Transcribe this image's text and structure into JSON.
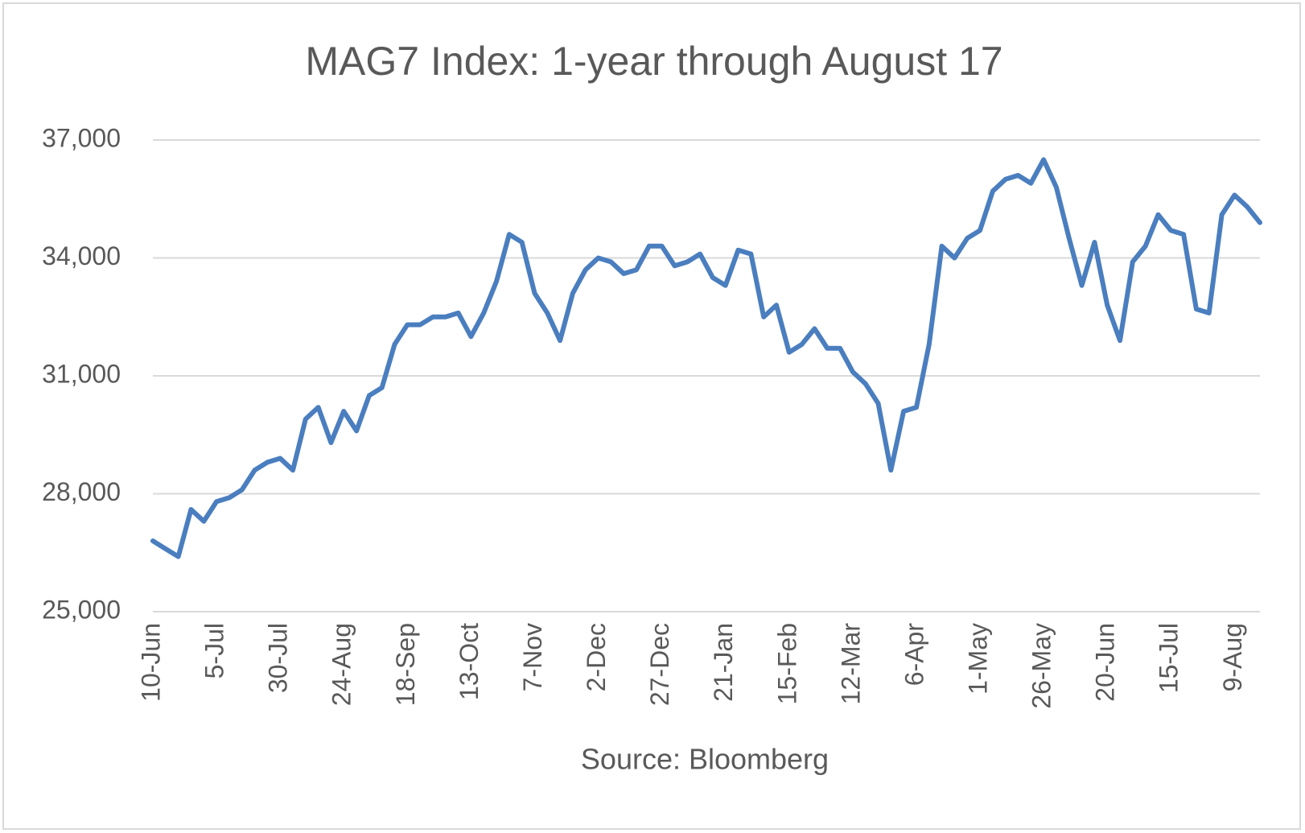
{
  "chart_data": {
    "type": "line",
    "title": "MAG7 Index: 1-year through August 17",
    "x_label": "Source: Bloomberg",
    "categories": [
      "10-Jun",
      null,
      null,
      null,
      null,
      "5-Jul",
      null,
      null,
      null,
      null,
      "30-Jul",
      null,
      null,
      null,
      null,
      "24-Aug",
      null,
      null,
      null,
      null,
      "18-Sep",
      null,
      null,
      null,
      null,
      "13-Oct",
      null,
      null,
      null,
      null,
      "7-Nov",
      null,
      null,
      null,
      null,
      "2-Dec",
      null,
      null,
      null,
      null,
      "27-Dec",
      null,
      null,
      null,
      null,
      "21-Jan",
      null,
      null,
      null,
      null,
      "15-Feb",
      null,
      null,
      null,
      null,
      "12-Mar",
      null,
      null,
      null,
      null,
      "6-Apr",
      null,
      null,
      null,
      null,
      "1-May",
      null,
      null,
      null,
      null,
      "26-May",
      null,
      null,
      null,
      null,
      "20-Jun",
      null,
      null,
      null,
      null,
      "15-Jul",
      null,
      null,
      null,
      null,
      "9-Aug",
      null,
      null
    ],
    "values": [
      26800,
      26600,
      26400,
      27600,
      27300,
      27800,
      27900,
      28100,
      28600,
      28800,
      28900,
      28600,
      29900,
      30200,
      29300,
      30100,
      29600,
      30500,
      30700,
      31800,
      32300,
      32300,
      32500,
      32500,
      32600,
      32000,
      32600,
      33400,
      34600,
      34400,
      33100,
      32600,
      31900,
      33100,
      33700,
      34000,
      33900,
      33600,
      33700,
      34300,
      34300,
      33800,
      33900,
      34100,
      33500,
      33300,
      34200,
      34100,
      32500,
      32800,
      31600,
      31800,
      32200,
      31700,
      31700,
      31100,
      30800,
      30300,
      28600,
      30100,
      30200,
      31800,
      34300,
      34000,
      34500,
      34700,
      35700,
      36000,
      36100,
      35900,
      36500,
      35800,
      34500,
      33300,
      34400,
      32800,
      31900,
      33900,
      34300,
      35100,
      34700,
      34600,
      32700,
      32600,
      35100,
      35600,
      35300,
      34900
    ],
    "color": "#4a7ebf",
    "ylim": [
      25000,
      37000
    ],
    "yticks": [
      {
        "value": 25000,
        "label": "25,000"
      },
      {
        "value": 28000,
        "label": "28,000"
      },
      {
        "value": 31000,
        "label": "31,000"
      },
      {
        "value": 34000,
        "label": "34,000"
      },
      {
        "value": 37000,
        "label": "37,000"
      }
    ],
    "grid": true
  }
}
